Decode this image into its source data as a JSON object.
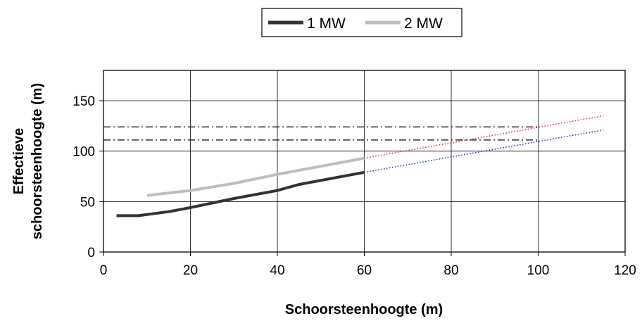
{
  "chart_data": {
    "type": "line",
    "title": "",
    "xlabel": "Schoorsteenhoogte (m)",
    "ylabel_lines": [
      "Effectieve",
      "schoorsteenhoogte (m)"
    ],
    "xlim": [
      0,
      120
    ],
    "ylim": [
      0,
      180
    ],
    "x_ticks": [
      0,
      20,
      40,
      60,
      80,
      100,
      120
    ],
    "y_ticks": [
      0,
      50,
      100,
      150
    ],
    "grid": true,
    "legend_position": "top-center",
    "series": [
      {
        "name": "1 MW",
        "color": "#333333",
        "points": [
          [
            3,
            36
          ],
          [
            8,
            36
          ],
          [
            15,
            40
          ],
          [
            20,
            44
          ],
          [
            30,
            53
          ],
          [
            40,
            61
          ],
          [
            45,
            67
          ],
          [
            60,
            79
          ]
        ]
      },
      {
        "name": "2 MW",
        "color": "#bdbdbd",
        "points": [
          [
            10,
            56
          ],
          [
            20,
            61
          ],
          [
            30,
            68
          ],
          [
            40,
            77
          ],
          [
            50,
            85
          ],
          [
            60,
            93
          ]
        ]
      }
    ],
    "extrapolations": [
      {
        "of": "2 MW",
        "color": "#e03030",
        "style": "dotted",
        "points": [
          [
            60,
            93
          ],
          [
            115,
            135
          ]
        ]
      },
      {
        "of": "1 MW",
        "color": "#2233bb",
        "style": "dotted",
        "points": [
          [
            60,
            79
          ],
          [
            115,
            121
          ]
        ]
      }
    ],
    "reference_lines": [
      {
        "y": 124,
        "x_range": [
          0,
          100
        ],
        "color": "#000000",
        "style": "dash-dot"
      },
      {
        "y": 111,
        "x_range": [
          0,
          100
        ],
        "color": "#000000",
        "style": "dash-dot"
      }
    ]
  }
}
